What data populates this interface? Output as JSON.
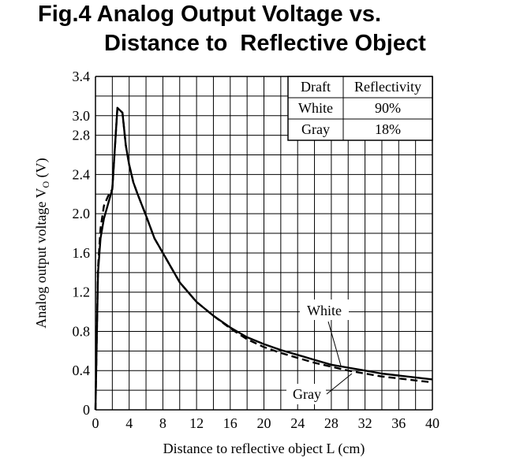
{
  "title": {
    "line1": "Fig.4 Analog Output Voltage vs.",
    "line2": "Distance to  Reflective Object"
  },
  "legend_table": {
    "headers": [
      "Draft",
      "Reflectivity"
    ],
    "rows": [
      [
        "White",
        "90%"
      ],
      [
        "Gray",
        "18%"
      ]
    ]
  },
  "chart_data": {
    "type": "line",
    "xlabel": "Distance to reflective object L (cm)",
    "ylabel": "Analog output voltage V",
    "ylabel_subscript": "O",
    "ylabel_unit": " (V)",
    "xlim": [
      0,
      40
    ],
    "ylim": [
      0,
      3.4
    ],
    "x_ticks": [
      0,
      4,
      8,
      12,
      16,
      20,
      24,
      28,
      32,
      36,
      40
    ],
    "y_ticks": [
      0,
      0.4,
      0.8,
      1.2,
      1.6,
      2.0,
      2.4,
      2.8,
      3.0,
      3.4
    ],
    "y_tick_labels": [
      "0",
      "0.4",
      "0.8",
      "1.2",
      "1.6",
      "2.0",
      "2.4",
      "2.8",
      "3.0",
      "3.4"
    ],
    "grid": true,
    "series": [
      {
        "name": "White",
        "style": "solid",
        "x": [
          0,
          0.3,
          0.6,
          1,
          1.5,
          2,
          2.6,
          3.2,
          3.6,
          4,
          4.5,
          5,
          6,
          7,
          8,
          9,
          10,
          12,
          14,
          16,
          18,
          20,
          22,
          24,
          26,
          28,
          30,
          32,
          34,
          36,
          38,
          40
        ],
        "y": [
          0,
          1.4,
          1.75,
          1.95,
          2.1,
          2.25,
          3.08,
          3.03,
          2.7,
          2.5,
          2.32,
          2.2,
          1.98,
          1.75,
          1.6,
          1.45,
          1.3,
          1.1,
          0.96,
          0.84,
          0.74,
          0.67,
          0.61,
          0.56,
          0.51,
          0.46,
          0.43,
          0.4,
          0.37,
          0.35,
          0.33,
          0.31
        ]
      },
      {
        "name": "Gray",
        "style": "dashed",
        "x": [
          0,
          0.3,
          0.6,
          1,
          1.5,
          2,
          2.6,
          3.2,
          3.6,
          4,
          4.5,
          5,
          6,
          7,
          8,
          9,
          10,
          12,
          14,
          16,
          18,
          20,
          22,
          24,
          26,
          28,
          30,
          32,
          34,
          36,
          38,
          40
        ],
        "y": [
          0,
          1.45,
          1.85,
          2.08,
          2.18,
          2.25,
          3.08,
          3.03,
          2.7,
          2.5,
          2.32,
          2.2,
          1.98,
          1.75,
          1.6,
          1.45,
          1.3,
          1.1,
          0.96,
          0.83,
          0.72,
          0.64,
          0.58,
          0.53,
          0.48,
          0.44,
          0.4,
          0.37,
          0.34,
          0.32,
          0.3,
          0.28
        ]
      }
    ],
    "annotations": [
      {
        "text": "White",
        "points_to_x": 29,
        "series": "White"
      },
      {
        "text": "Gray",
        "points_to_x": 31,
        "series": "Gray"
      }
    ]
  }
}
